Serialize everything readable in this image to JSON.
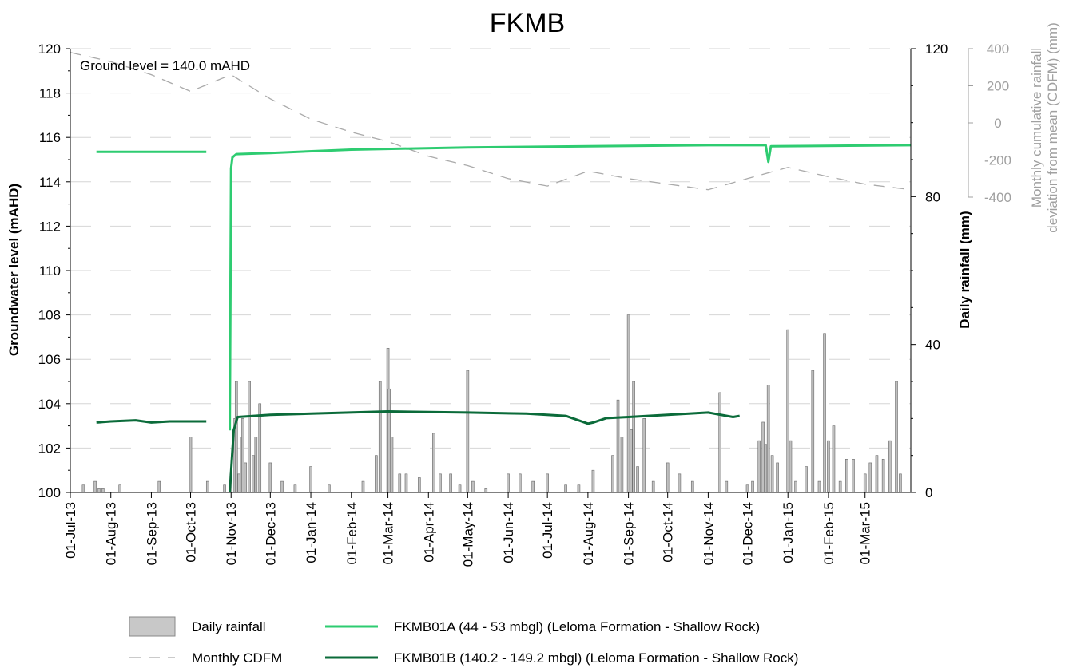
{
  "chart_data": {
    "type": "line",
    "title": "FKMB",
    "annotation": "Ground level = 140.0 mAHD",
    "y_left": {
      "label": "Groundwater level (mAHD)",
      "range": [
        100,
        120
      ],
      "ticks": [
        100,
        102,
        104,
        106,
        108,
        110,
        112,
        114,
        116,
        118,
        120
      ]
    },
    "y_right": {
      "label": "Daily rainfall (mm)",
      "range": [
        0,
        120
      ],
      "ticks": [
        0,
        40,
        80,
        120
      ]
    },
    "y_right2": {
      "label_line1": "Monthly cumulative rainfall",
      "label_line2": "deviation from mean (CDFM) (mm)",
      "range": [
        -400,
        400
      ],
      "ticks": [
        -400,
        -200,
        0,
        200,
        400
      ]
    },
    "x": {
      "type": "date",
      "range": [
        "2013-07-01",
        "2015-04-05"
      ],
      "tick_dates": [
        "2013-07-01",
        "2013-08-01",
        "2013-09-01",
        "2013-10-01",
        "2013-11-01",
        "2013-12-01",
        "2014-01-01",
        "2014-02-01",
        "2014-03-01",
        "2014-04-01",
        "2014-05-01",
        "2014-06-01",
        "2014-07-01",
        "2014-08-01",
        "2014-09-01",
        "2014-10-01",
        "2014-11-01",
        "2014-12-01",
        "2015-01-01",
        "2015-02-01",
        "2015-03-01"
      ],
      "tick_labels": [
        "01-Jul-13",
        "01-Aug-13",
        "01-Sep-13",
        "01-Oct-13",
        "01-Nov-13",
        "01-Dec-13",
        "01-Jan-14",
        "01-Feb-14",
        "01-Mar-14",
        "01-Apr-14",
        "01-May-14",
        "01-Jun-14",
        "01-Jul-14",
        "01-Aug-14",
        "01-Sep-14",
        "01-Oct-14",
        "01-Nov-14",
        "01-Dec-14",
        "01-Jan-15",
        "01-Feb-15",
        "01-Mar-15"
      ]
    },
    "series": [
      {
        "name": "FKMB01A (44 - 53 mbgl) (Leloma Formation - Shallow Rock)",
        "axis": "left",
        "color": "#2ecc71",
        "segments": [
          [
            [
              "2013-07-21",
              115.35
            ],
            [
              "2013-10-13",
              115.35
            ]
          ],
          [
            [
              "2013-10-31",
              102.8
            ],
            [
              "2013-11-01",
              114.6
            ],
            [
              "2013-11-02",
              115.1
            ],
            [
              "2013-11-05",
              115.25
            ],
            [
              "2013-12-01",
              115.3
            ],
            [
              "2014-02-01",
              115.45
            ],
            [
              "2014-05-01",
              115.55
            ],
            [
              "2014-08-01",
              115.6
            ],
            [
              "2014-11-01",
              115.65
            ],
            [
              "2014-12-15",
              115.65
            ],
            [
              "2014-12-17",
              114.9
            ],
            [
              "2014-12-19",
              115.6
            ],
            [
              "2015-04-05",
              115.65
            ]
          ]
        ]
      },
      {
        "name": "FKMB01B (140.2 - 149.2 mbgl) (Leloma Formation - Shallow Rock)",
        "axis": "left",
        "color": "#0b6b3a",
        "segments": [
          [
            [
              "2013-07-21",
              103.15
            ],
            [
              "2013-08-01",
              103.2
            ],
            [
              "2013-08-20",
              103.25
            ],
            [
              "2013-09-01",
              103.15
            ],
            [
              "2013-09-15",
              103.2
            ],
            [
              "2013-10-01",
              103.2
            ],
            [
              "2013-10-13",
              103.2
            ]
          ],
          [
            [
              "2013-10-31",
              100.0
            ],
            [
              "2013-11-03",
              102.8
            ],
            [
              "2013-11-06",
              103.4
            ],
            [
              "2013-12-01",
              103.5
            ],
            [
              "2014-01-01",
              103.55
            ],
            [
              "2014-03-01",
              103.65
            ],
            [
              "2014-05-01",
              103.6
            ],
            [
              "2014-06-15",
              103.55
            ],
            [
              "2014-07-15",
              103.45
            ],
            [
              "2014-08-01",
              103.1
            ],
            [
              "2014-08-05",
              103.15
            ],
            [
              "2014-08-15",
              103.35
            ],
            [
              "2014-09-01",
              103.4
            ],
            [
              "2014-10-01",
              103.5
            ],
            [
              "2014-11-01",
              103.6
            ],
            [
              "2014-11-20",
              103.4
            ],
            [
              "2014-11-25",
              103.45
            ]
          ]
        ]
      },
      {
        "name": "Monthly CDFM",
        "axis": "right2",
        "color": "#aaaaaa",
        "points": [
          [
            "2013-07-01",
            380
          ],
          [
            "2013-08-01",
            330
          ],
          [
            "2013-09-01",
            260
          ],
          [
            "2013-10-01",
            170
          ],
          [
            "2013-11-01",
            260
          ],
          [
            "2013-12-01",
            130
          ],
          [
            "2014-01-01",
            20
          ],
          [
            "2014-02-01",
            -50
          ],
          [
            "2014-03-01",
            -100
          ],
          [
            "2014-04-01",
            -180
          ],
          [
            "2014-05-01",
            -230
          ],
          [
            "2014-06-01",
            -300
          ],
          [
            "2014-07-01",
            -340
          ],
          [
            "2014-08-01",
            -260
          ],
          [
            "2014-09-01",
            -300
          ],
          [
            "2014-10-01",
            -330
          ],
          [
            "2014-11-01",
            -360
          ],
          [
            "2014-12-01",
            -300
          ],
          [
            "2015-01-01",
            -240
          ],
          [
            "2015-02-01",
            -290
          ],
          [
            "2015-03-01",
            -330
          ],
          [
            "2015-04-05",
            -360
          ]
        ]
      },
      {
        "name": "Daily rainfall",
        "axis": "right",
        "color": "#c0c0c0",
        "type": "bar",
        "points": [
          [
            "2013-07-11",
            2
          ],
          [
            "2013-07-20",
            3
          ],
          [
            "2013-07-23",
            1
          ],
          [
            "2013-07-26",
            1
          ],
          [
            "2013-08-08",
            2
          ],
          [
            "2013-09-07",
            3
          ],
          [
            "2013-10-01",
            15
          ],
          [
            "2013-10-14",
            3
          ],
          [
            "2013-10-27",
            2
          ],
          [
            "2013-11-01",
            5
          ],
          [
            "2013-11-04",
            20
          ],
          [
            "2013-11-05",
            30
          ],
          [
            "2013-11-07",
            5
          ],
          [
            "2013-11-09",
            15
          ],
          [
            "2013-11-10",
            20
          ],
          [
            "2013-11-12",
            8
          ],
          [
            "2013-11-15",
            30
          ],
          [
            "2013-11-18",
            10
          ],
          [
            "2013-11-20",
            15
          ],
          [
            "2013-11-23",
            24
          ],
          [
            "2013-12-01",
            8
          ],
          [
            "2013-12-10",
            3
          ],
          [
            "2013-12-20",
            2
          ],
          [
            "2014-01-01",
            7
          ],
          [
            "2014-01-15",
            2
          ],
          [
            "2014-02-10",
            3
          ],
          [
            "2014-02-20",
            10
          ],
          [
            "2014-02-23",
            30
          ],
          [
            "2014-03-01",
            39
          ],
          [
            "2014-03-02",
            28
          ],
          [
            "2014-03-04",
            15
          ],
          [
            "2014-03-10",
            5
          ],
          [
            "2014-03-15",
            5
          ],
          [
            "2014-03-25",
            4
          ],
          [
            "2014-04-05",
            16
          ],
          [
            "2014-04-10",
            5
          ],
          [
            "2014-04-18",
            5
          ],
          [
            "2014-04-25",
            2
          ],
          [
            "2014-05-01",
            33
          ],
          [
            "2014-05-05",
            3
          ],
          [
            "2014-05-15",
            1
          ],
          [
            "2014-06-01",
            5
          ],
          [
            "2014-06-10",
            5
          ],
          [
            "2014-06-20",
            3
          ],
          [
            "2014-07-01",
            5
          ],
          [
            "2014-07-15",
            2
          ],
          [
            "2014-07-25",
            2
          ],
          [
            "2014-08-05",
            6
          ],
          [
            "2014-08-20",
            10
          ],
          [
            "2014-08-24",
            25
          ],
          [
            "2014-08-27",
            15
          ],
          [
            "2014-09-01",
            48
          ],
          [
            "2014-09-03",
            17
          ],
          [
            "2014-09-05",
            30
          ],
          [
            "2014-09-08",
            7
          ],
          [
            "2014-09-13",
            20
          ],
          [
            "2014-09-20",
            3
          ],
          [
            "2014-10-01",
            8
          ],
          [
            "2014-10-10",
            5
          ],
          [
            "2014-10-20",
            3
          ],
          [
            "2014-11-10",
            27
          ],
          [
            "2014-11-15",
            3
          ],
          [
            "2014-12-01",
            2
          ],
          [
            "2014-12-05",
            3
          ],
          [
            "2014-12-10",
            14
          ],
          [
            "2014-12-13",
            19
          ],
          [
            "2014-12-15",
            13
          ],
          [
            "2014-12-17",
            29
          ],
          [
            "2014-12-20",
            10
          ],
          [
            "2014-12-24",
            8
          ],
          [
            "2015-01-01",
            44
          ],
          [
            "2015-01-03",
            14
          ],
          [
            "2015-01-07",
            3
          ],
          [
            "2015-01-15",
            7
          ],
          [
            "2015-01-20",
            33
          ],
          [
            "2015-01-25",
            3
          ],
          [
            "2015-01-29",
            43
          ],
          [
            "2015-02-01",
            14
          ],
          [
            "2015-02-05",
            18
          ],
          [
            "2015-02-10",
            3
          ],
          [
            "2015-02-15",
            9
          ],
          [
            "2015-02-20",
            9
          ],
          [
            "2015-03-01",
            5
          ],
          [
            "2015-03-05",
            8
          ],
          [
            "2015-03-10",
            10
          ],
          [
            "2015-03-15",
            9
          ],
          [
            "2015-03-20",
            14
          ],
          [
            "2015-03-25",
            30
          ],
          [
            "2015-03-28",
            5
          ]
        ]
      }
    ],
    "legend": [
      {
        "label": "Daily rainfall",
        "style": "bar-swatch"
      },
      {
        "label": "FKMB01A (44 - 53 mbgl) (Leloma Formation - Shallow Rock)",
        "style": "line-light"
      },
      {
        "label": "Monthly CDFM",
        "style": "dash"
      },
      {
        "label": "FKMB01B (140.2 - 149.2 mbgl) (Leloma Formation - Shallow Rock)",
        "style": "line-dark"
      }
    ]
  }
}
